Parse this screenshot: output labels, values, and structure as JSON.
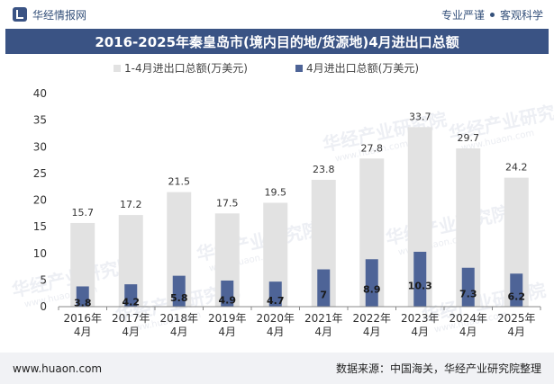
{
  "header": {
    "brand": "华经情报网",
    "tagline_left": "专业严谨",
    "tagline_right": "客观科学"
  },
  "watermark": {
    "cn": "华经产业研究院",
    "url": "www.huaon.com"
  },
  "footer": {
    "url": "www.huaon.com",
    "source": "数据来源：中国海关，华经产业研究院整理"
  },
  "colors": {
    "title_bg": "#3a5384",
    "series_total": "#e2e2e2",
    "series_april": "#4e6497"
  },
  "chart_data": {
    "type": "bar",
    "title": "2016-2025年秦皇岛市(境内目的地/货源地)4月进出口总额",
    "categories": [
      "2016年\n4月",
      "2017年\n4月",
      "2018年\n4月",
      "2019年\n4月",
      "2020年\n4月",
      "2021年\n4月",
      "2022年\n4月",
      "2023年\n4月",
      "2024年\n4月",
      "2025年\n4月"
    ],
    "series": [
      {
        "name": "1-4月进出口总额(万美元)",
        "values": [
          15.7,
          17.2,
          21.5,
          17.5,
          19.5,
          23.8,
          27.8,
          33.7,
          29.7,
          24.2
        ],
        "color": "#e2e2e2"
      },
      {
        "name": "4月进出口总额(万美元)",
        "values": [
          3.8,
          4.2,
          5.8,
          4.9,
          4.7,
          7,
          8.9,
          10.3,
          7.3,
          6.2
        ],
        "color": "#4e6497"
      }
    ],
    "ylim": [
      0,
      40
    ],
    "yticks": [
      0,
      5,
      10,
      15,
      20,
      25,
      30,
      35,
      40
    ],
    "grid": false,
    "legend_position": "top"
  }
}
